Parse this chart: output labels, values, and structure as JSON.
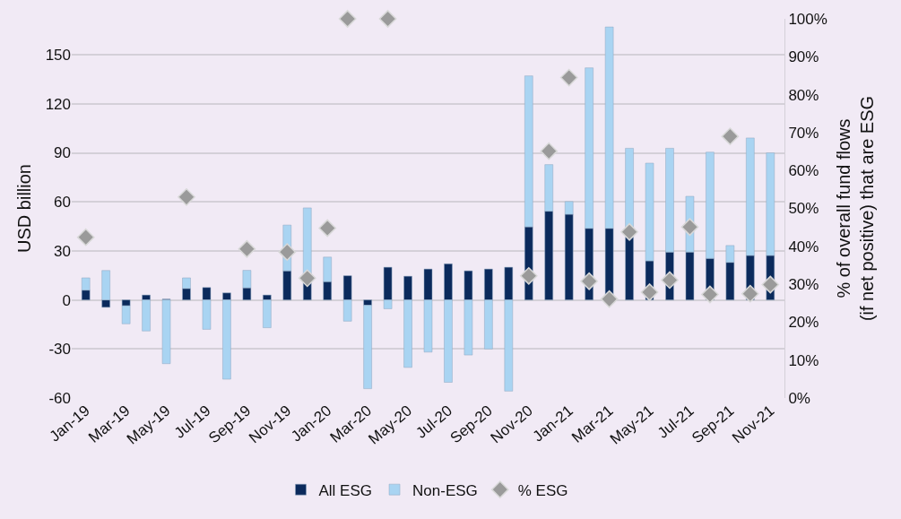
{
  "chart_data": {
    "type": "bar",
    "stacked": true,
    "ylabel": "USD billion",
    "y2label": "% of overall fund flows\n(if net positive) that are ESG",
    "categories": [
      "Jan-19",
      null,
      "Mar-19",
      null,
      "May-19",
      null,
      "Jul-19",
      null,
      "Sep-19",
      null,
      "Nov-19",
      null,
      "Jan-20",
      null,
      "Mar-20",
      null,
      "May-20",
      null,
      "Jul-20",
      null,
      "Sep-20",
      null,
      "Nov-20",
      null,
      "Jan-21",
      null,
      "Mar-21",
      null,
      "May-21",
      null,
      "Jul-21",
      null,
      "Sep-21",
      null,
      "Nov-21"
    ],
    "series": [
      {
        "name": "All ESG",
        "color": "#0b2a5c",
        "values": [
          6,
          -4.5,
          -3.6,
          3,
          0.5,
          7,
          7.6,
          4.3,
          7.4,
          3,
          17.8,
          10.3,
          11.2,
          14.8,
          -3.3,
          20,
          14.5,
          18.9,
          22.1,
          17.8,
          18.9,
          20,
          44.7,
          54.3,
          52.4,
          43.8,
          43.8,
          38.4,
          23.9,
          29.3,
          29.3,
          25.4,
          23,
          27.2,
          27.2
        ]
      },
      {
        "name": "Non-ESG",
        "color": "#a9d4f2",
        "values": [
          7.5,
          18,
          -11,
          -19,
          -39,
          6.5,
          -18,
          -48.5,
          10.7,
          -17,
          28,
          46,
          15,
          -13,
          -51,
          -5.4,
          -41.3,
          -31.9,
          -50.4,
          -33.7,
          -30,
          -55.8,
          92.4,
          28.5,
          7.8,
          98.2,
          123.2,
          54.4,
          59.8,
          63.5,
          34.1,
          65,
          10.3,
          71.9,
          62.8
        ]
      },
      {
        "name": "% ESG",
        "type": "scatter",
        "axis": "y2",
        "marker": "diamond",
        "color": "#9a9a9a",
        "values": [
          42.4,
          null,
          null,
          null,
          null,
          53,
          null,
          null,
          39.3,
          null,
          38.5,
          31.6,
          44.8,
          100,
          null,
          100,
          null,
          null,
          null,
          null,
          null,
          null,
          32.2,
          65.1,
          84.5,
          30.8,
          26.1,
          43.8,
          27.9,
          31.1,
          45.1,
          27.3,
          69,
          27.5,
          29.9
        ]
      }
    ],
    "ylim": [
      -60,
      172
    ],
    "yticks": [
      -60,
      -30,
      0,
      30,
      60,
      90,
      120,
      150
    ],
    "y2lim": [
      0,
      100
    ],
    "y2ticks": [
      {
        "value": 0,
        "label": "0%"
      },
      {
        "value": 10,
        "label": "10%"
      },
      {
        "value": 20,
        "label": "20%"
      },
      {
        "value": 30,
        "label": "30%"
      },
      {
        "value": 40,
        "label": "40%"
      },
      {
        "value": 50,
        "label": "50%"
      },
      {
        "value": 60,
        "label": "60%"
      },
      {
        "value": 70,
        "label": "70%"
      },
      {
        "value": 80,
        "label": "80%"
      },
      {
        "value": 90,
        "label": "90%"
      },
      {
        "value": 100,
        "label": "100%"
      }
    ],
    "grid": "y",
    "legend": "bottom"
  }
}
